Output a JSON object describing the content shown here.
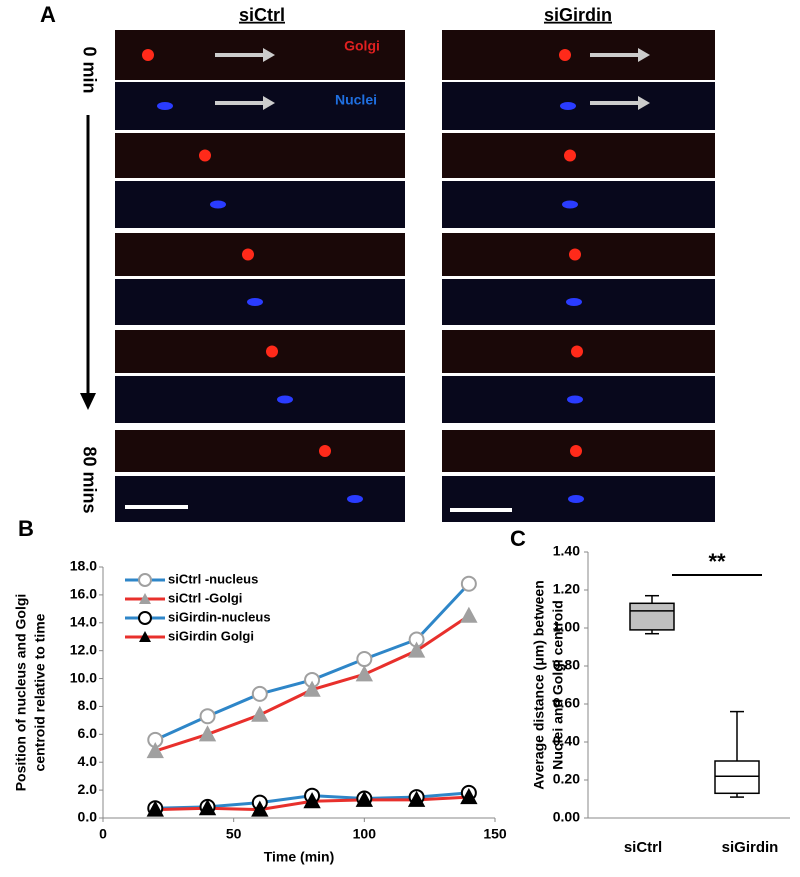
{
  "panel_a": {
    "label": "A",
    "columns": [
      "siCtrl",
      "siGirdin"
    ],
    "time_start": "0 min",
    "time_end": "80 mins",
    "channels": [
      "Golgi",
      "Nuclei"
    ]
  },
  "chart_data": [
    {
      "type": "line",
      "panel_label": "B",
      "xlabel": "Time (min)",
      "ylabel": [
        "Position  of nucleus and Golgi",
        "centroid relative to time"
      ],
      "x": [
        20,
        40,
        60,
        80,
        100,
        120,
        140
      ],
      "xlim": [
        0,
        150
      ],
      "xticks": [
        0,
        50,
        100,
        150
      ],
      "ylim": [
        0,
        18
      ],
      "yticks": [
        {
          "value": 0,
          "label": "0.0"
        },
        {
          "value": 2,
          "label": "2.0"
        },
        {
          "value": 4,
          "label": "4.0"
        },
        {
          "value": 6,
          "label": "6.0"
        },
        {
          "value": 8,
          "label": "8.0"
        },
        {
          "value": 10,
          "label": "10.0"
        },
        {
          "value": 12,
          "label": "12.0"
        },
        {
          "value": 14,
          "label": "14.0"
        },
        {
          "value": 16,
          "label": "16.0"
        },
        {
          "value": 18,
          "label": "18.0"
        }
      ],
      "grid": false,
      "legend": "upper left",
      "series": [
        {
          "name": "siCtrl -nucleus",
          "color": "#2e86c8",
          "marker": "circle",
          "marker_fill": "#ffffff",
          "marker_edge": "#a0a0a0",
          "values": [
            5.6,
            7.3,
            8.9,
            9.9,
            11.4,
            12.8,
            16.8
          ]
        },
        {
          "name": "siCtrl -Golgi",
          "color": "#e8302c",
          "marker": "triangle",
          "marker_fill": "#a0a0a0",
          "marker_edge": "#a0a0a0",
          "values": [
            4.8,
            6.0,
            7.4,
            9.2,
            10.3,
            12.0,
            14.5
          ]
        },
        {
          "name": "siGirdin-nucleus",
          "color": "#2e86c8",
          "marker": "circle",
          "marker_fill": "#ffffff",
          "marker_edge": "#000000",
          "values": [
            0.7,
            0.8,
            1.1,
            1.6,
            1.4,
            1.5,
            1.8
          ]
        },
        {
          "name": "siGirdin Golgi",
          "color": "#e8302c",
          "marker": "triangle",
          "marker_fill": "#000000",
          "marker_edge": "#000000",
          "values": [
            0.6,
            0.7,
            0.6,
            1.2,
            1.3,
            1.3,
            1.5
          ]
        }
      ]
    },
    {
      "type": "box",
      "panel_label": "C",
      "ylabel": [
        "Average distance (μm) between",
        "Nuclei and Golgi centroid"
      ],
      "categories": [
        "siCtrl",
        "siGirdin"
      ],
      "ylim": [
        0,
        1.4
      ],
      "yticks": [
        {
          "value": 0,
          "label": "0.00"
        },
        {
          "value": 0.2,
          "label": "0.20"
        },
        {
          "value": 0.4,
          "label": "0.40"
        },
        {
          "value": 0.6,
          "label": "0.60"
        },
        {
          "value": 0.8,
          "label": "0.80"
        },
        {
          "value": 1.0,
          "label": "1.00"
        },
        {
          "value": 1.2,
          "label": "1.20"
        },
        {
          "value": 1.4,
          "label": "1.40"
        }
      ],
      "grid": false,
      "annotation": "**",
      "boxes": [
        {
          "min": 0.97,
          "q1": 0.99,
          "median": 1.09,
          "q3": 1.13,
          "max": 1.17,
          "color": "#c0c0c0"
        },
        {
          "min": 0.11,
          "q1": 0.13,
          "median": 0.22,
          "q3": 0.3,
          "max": 0.56,
          "color": "#ffffff"
        }
      ]
    }
  ]
}
